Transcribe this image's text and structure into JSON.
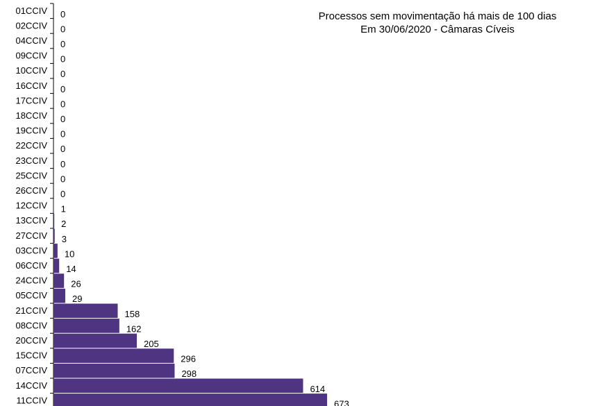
{
  "chart_data": {
    "type": "bar",
    "orientation": "horizontal",
    "title": "Processos sem movimentação há mais de 100 dias",
    "subtitle": "Em 30/06/2020 - Câmaras Cíveis",
    "categories": [
      "01CCIV",
      "02CCIV",
      "04CCIV",
      "09CCIV",
      "10CCIV",
      "16CCIV",
      "17CCIV",
      "18CCIV",
      "19CCIV",
      "22CCIV",
      "23CCIV",
      "25CCIV",
      "26CCIV",
      "12CCIV",
      "13CCIV",
      "27CCIV",
      "03CCIV",
      "06CCIV",
      "24CCIV",
      "05CCIV",
      "21CCIV",
      "08CCIV",
      "20CCIV",
      "15CCIV",
      "07CCIV",
      "14CCIV",
      "11CCIV"
    ],
    "values": [
      0,
      0,
      0,
      0,
      0,
      0,
      0,
      0,
      0,
      0,
      0,
      0,
      0,
      1,
      2,
      3,
      10,
      14,
      26,
      29,
      158,
      162,
      205,
      296,
      298,
      614,
      673
    ],
    "bar_color": "#4f3482",
    "data_labels": true,
    "grid": false,
    "legend": "none"
  }
}
